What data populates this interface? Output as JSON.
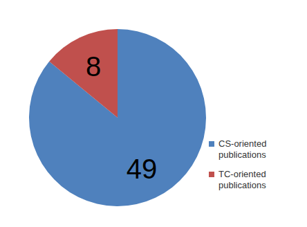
{
  "chart_data": {
    "type": "pie",
    "categories": [
      "CS-oriented publications",
      "TC-oriented publications"
    ],
    "values": [
      49,
      8
    ],
    "colors": [
      "#4f81bd",
      "#c0504d"
    ],
    "data_labels": true,
    "legend": "right"
  }
}
